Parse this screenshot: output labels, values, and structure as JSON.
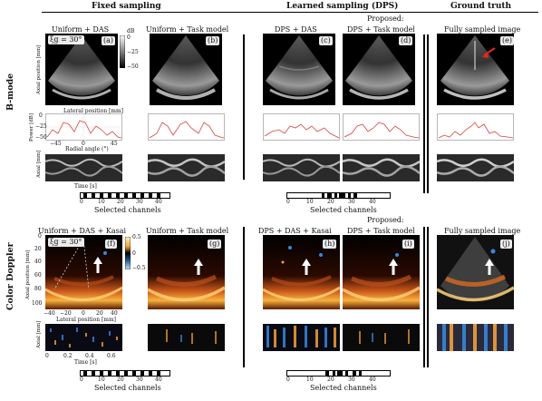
{
  "headers": {
    "fixed": "Fixed sampling",
    "learned": "Learned sampling (DPS)",
    "truth": "Ground truth"
  },
  "row_labels": {
    "bmode": "B-mode",
    "doppler": "Color Doppler"
  },
  "bmode": {
    "titles": [
      "Uniform + DAS",
      "Uniform + Task model",
      "DPS + DAS",
      "DPS + Task model",
      "Fully sampled image"
    ],
    "proposed": "Proposed:",
    "letters": [
      "(a)",
      "(b)",
      "(c)",
      "(d)",
      "(e)"
    ],
    "theta": "ξg = 30°",
    "axial_label": "Axial position [mm]",
    "lateral_label": "Lateral position [mm]",
    "cbar_unit": "dB",
    "cbar_ticks": [
      "0",
      "−25",
      "−50"
    ],
    "power_label": "Power [dB]",
    "power_ticks": [
      "0",
      "−25",
      "−50"
    ],
    "radial_label": "Radial angle (°)",
    "radial_ticks": [
      "−45",
      "0",
      "45"
    ],
    "axial_mm": "Axial [mm]",
    "time_label": "Time [s]"
  },
  "doppler": {
    "titles": [
      "Uniform + DAS + Kasai",
      "Uniform + Task model",
      "DPS + DAS + Kasai",
      "DPS + Task model",
      "Fully sampled image"
    ],
    "proposed": "Proposed:",
    "letters": [
      "(f)",
      "(g)",
      "(h)",
      "(i)",
      "(j)"
    ],
    "theta": "ξg = 30°",
    "axial_label": "Axial position [mm]",
    "lateral_label": "Lateral position [mm]",
    "y_ticks": [
      "0",
      "20",
      "40",
      "60",
      "80",
      "100"
    ],
    "x_ticks": [
      "−40",
      "−20",
      "0",
      "20",
      "40"
    ],
    "cbar_ticks": [
      "0.5",
      "0",
      "−0.5"
    ],
    "axial_mm": "Axial [mm]",
    "time_label": "Time [s]",
    "time_ticks": [
      "0",
      "0.2",
      "0.4",
      "0.6"
    ]
  },
  "selected_channels": {
    "label": "Selected channels",
    "ticks": [
      "0",
      "10",
      "20",
      "30",
      "40"
    ]
  },
  "colors": {
    "doppler_pos": "#f2a03a",
    "doppler_neg": "#3a86d9",
    "arrow_red": "#e0281a",
    "power_curve": "#d8423a"
  }
}
